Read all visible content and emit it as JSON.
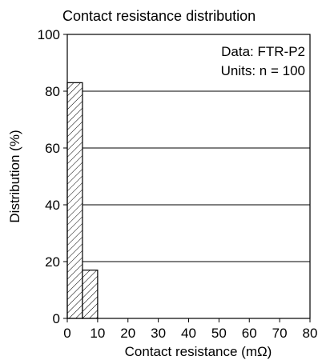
{
  "chart_data": {
    "type": "bar",
    "title": "Contact resistance distribution",
    "xlabel": "Contact resistance (mΩ)",
    "ylabel": "Distribution (%)",
    "xlim": [
      0,
      80
    ],
    "ylim": [
      0,
      100
    ],
    "xticks": [
      0,
      10,
      20,
      30,
      40,
      50,
      60,
      70,
      80
    ],
    "yticks": [
      0,
      20,
      40,
      60,
      80,
      100
    ],
    "bins": [
      {
        "start": 0,
        "end": 5,
        "value": 83
      },
      {
        "start": 5,
        "end": 10,
        "value": 17
      }
    ],
    "bar_pattern": "diagonal-hatch",
    "grid": "horizontal",
    "annotations": [
      "Data: FTR-P2",
      "Units: n = 100"
    ],
    "annotation_position": "top-right"
  }
}
